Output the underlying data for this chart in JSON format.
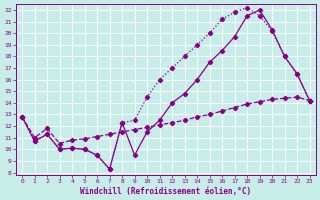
{
  "xlabel": "Windchill (Refroidissement éolien,°C)",
  "bg_color": "#c8ece8",
  "line_color": "#880088",
  "xlim": [
    -0.5,
    23.5
  ],
  "ylim": [
    7.8,
    22.5
  ],
  "xticks": [
    0,
    1,
    2,
    3,
    4,
    5,
    6,
    7,
    8,
    9,
    10,
    11,
    12,
    13,
    14,
    15,
    16,
    17,
    18,
    19,
    20,
    21,
    22,
    23
  ],
  "yticks": [
    8,
    9,
    10,
    11,
    12,
    13,
    14,
    15,
    16,
    17,
    18,
    19,
    20,
    21,
    22
  ],
  "curve1_x": [
    0,
    1,
    2,
    3,
    4,
    5,
    6,
    7,
    8,
    9,
    10,
    11,
    12,
    13,
    14,
    15,
    16,
    17,
    18,
    19,
    20,
    21,
    22,
    23
  ],
  "curve1_y": [
    12.8,
    10.7,
    11.3,
    10.0,
    10.1,
    10.0,
    9.5,
    8.3,
    12.3,
    9.5,
    11.5,
    12.5,
    14.0,
    14.8,
    16.0,
    17.5,
    18.5,
    19.7,
    21.5,
    22.0,
    20.3,
    18.0,
    16.5,
    14.2
  ],
  "curve2_x": [
    0,
    1,
    2,
    3,
    4,
    5,
    6,
    7,
    8,
    9,
    10,
    11,
    12,
    13,
    14,
    15,
    16,
    17,
    18,
    19,
    20,
    21,
    22,
    23
  ],
  "curve2_y": [
    12.8,
    10.7,
    11.3,
    10.0,
    10.1,
    10.0,
    9.5,
    8.3,
    12.3,
    12.5,
    14.5,
    16.0,
    17.0,
    18.0,
    19.0,
    20.0,
    21.2,
    21.8,
    22.2,
    21.5,
    20.2,
    18.0,
    16.5,
    14.2
  ],
  "curve3_x": [
    0,
    1,
    2,
    3,
    4,
    5,
    6,
    7,
    8,
    9,
    10,
    11,
    12,
    13,
    14,
    15,
    16,
    17,
    18,
    19,
    20,
    21,
    22,
    23
  ],
  "curve3_y": [
    12.8,
    11.0,
    11.8,
    10.5,
    10.8,
    10.9,
    11.1,
    11.3,
    11.5,
    11.7,
    11.9,
    12.1,
    12.3,
    12.5,
    12.8,
    13.0,
    13.3,
    13.6,
    13.9,
    14.1,
    14.3,
    14.4,
    14.5,
    14.2
  ],
  "linewidth": 0.9,
  "markersize": 2.2,
  "tick_fontsize": 4.5,
  "xlabel_fontsize": 5.5
}
